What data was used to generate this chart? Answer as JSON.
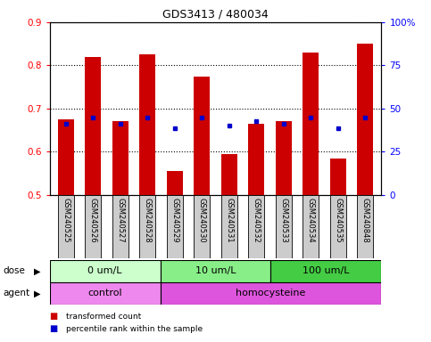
{
  "title": "GDS3413 / 480034",
  "samples": [
    "GSM240525",
    "GSM240526",
    "GSM240527",
    "GSM240528",
    "GSM240529",
    "GSM240530",
    "GSM240531",
    "GSM240532",
    "GSM240533",
    "GSM240534",
    "GSM240535",
    "GSM240848"
  ],
  "transformed_count": [
    0.675,
    0.82,
    0.67,
    0.825,
    0.555,
    0.775,
    0.595,
    0.665,
    0.67,
    0.83,
    0.585,
    0.85
  ],
  "percentile_rank": [
    0.665,
    0.68,
    0.665,
    0.68,
    0.655,
    0.68,
    0.66,
    0.67,
    0.665,
    0.68,
    0.655,
    0.68
  ],
  "bar_bottom": 0.5,
  "bar_color": "#cc0000",
  "dot_color": "#0000cc",
  "ylim_left": [
    0.5,
    0.9
  ],
  "ylim_right": [
    0,
    100
  ],
  "yticks_left": [
    0.5,
    0.6,
    0.7,
    0.8,
    0.9
  ],
  "yticks_right": [
    0,
    25,
    50,
    75,
    100
  ],
  "ytick_labels_right": [
    "0",
    "25",
    "50",
    "75",
    "100%"
  ],
  "dose_groups": [
    {
      "label": "0 um/L",
      "start": 0,
      "end": 4,
      "color": "#ccffcc"
    },
    {
      "label": "10 um/L",
      "start": 4,
      "end": 8,
      "color": "#88ee88"
    },
    {
      "label": "100 um/L",
      "start": 8,
      "end": 12,
      "color": "#44cc44"
    }
  ],
  "agent_groups": [
    {
      "label": "control",
      "start": 0,
      "end": 4,
      "color": "#ee88ee"
    },
    {
      "label": "homocysteine",
      "start": 4,
      "end": 12,
      "color": "#dd55dd"
    }
  ],
  "legend_items": [
    {
      "color": "#cc0000",
      "label": "transformed count"
    },
    {
      "color": "#0000cc",
      "label": "percentile rank within the sample"
    }
  ],
  "xlabel_dose": "dose",
  "xlabel_agent": "agent",
  "background_color": "#ffffff",
  "sample_bg_color": "#cccccc"
}
